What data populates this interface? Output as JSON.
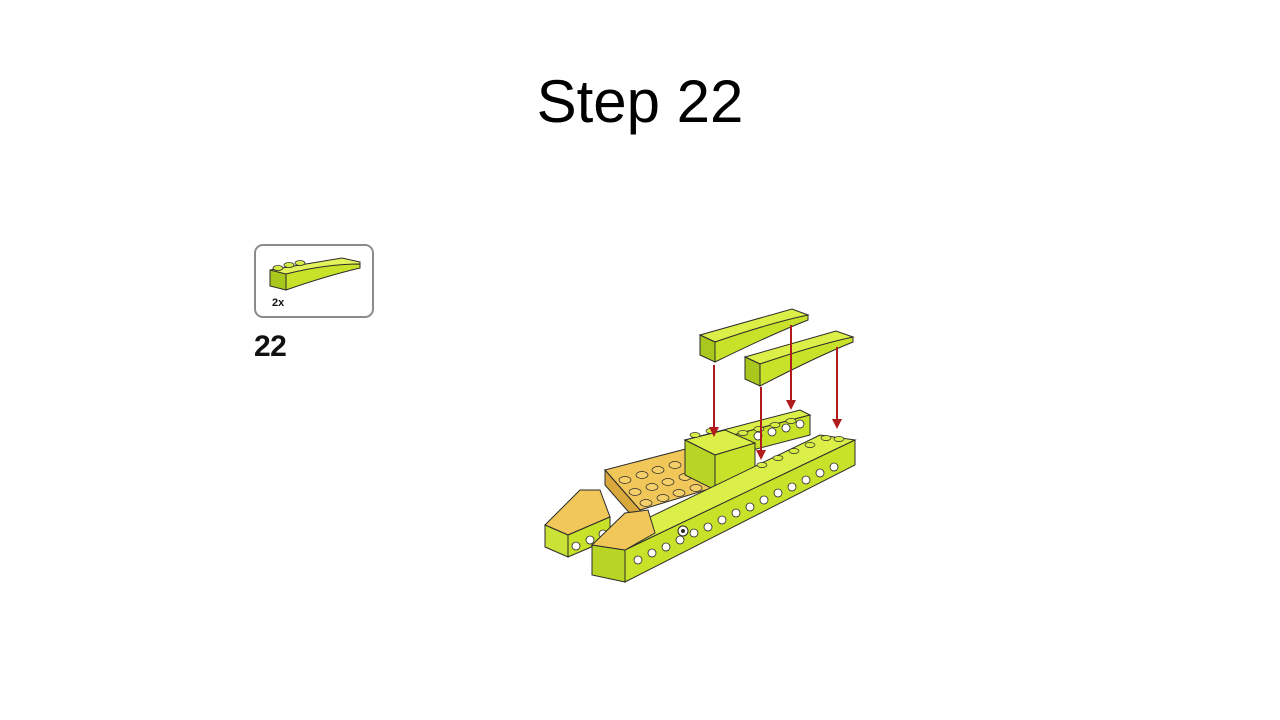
{
  "slide": {
    "title": "Step 22"
  },
  "parts_list": {
    "items": [
      {
        "quantity": "2x",
        "part": "curved-slope-brick-icon",
        "color": "#c8e22a"
      }
    ]
  },
  "step": {
    "number": "22"
  },
  "colors": {
    "lime": "#c8e22a",
    "lime_dark": "#8fb018",
    "tan": "#f2c75a",
    "tan_dark": "#d9a83c",
    "arrow": "#b01c1c",
    "outline": "#2b2b2b"
  }
}
